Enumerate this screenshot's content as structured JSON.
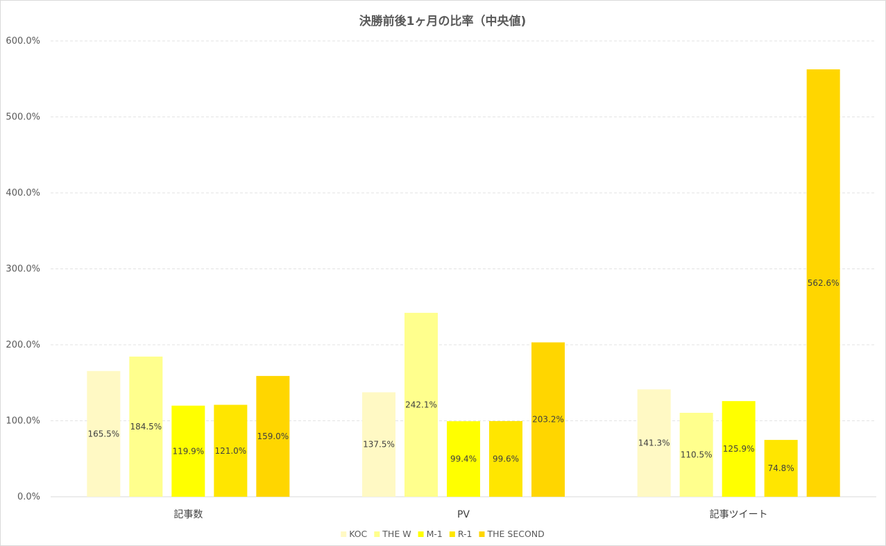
{
  "chart_data": {
    "type": "bar",
    "title": "決勝前後1ヶ月の比率（中央値)",
    "categories": [
      "記事数",
      "PV",
      "記事ツイート"
    ],
    "series": [
      {
        "name": "KOC",
        "color": "#FFF9C4",
        "values": [
          165.5,
          137.5,
          141.3
        ],
        "labels": [
          "165.5%",
          "137.5%",
          "141.3%"
        ]
      },
      {
        "name": "THE W",
        "color": "#FFFF8D",
        "values": [
          184.5,
          242.1,
          110.5
        ],
        "labels": [
          "184.5%",
          "242.1%",
          "110.5%"
        ]
      },
      {
        "name": "M-1",
        "color": "#FFFF00",
        "values": [
          119.9,
          99.4,
          125.9
        ],
        "labels": [
          "119.9%",
          "99.4%",
          "125.9%"
        ]
      },
      {
        "name": "R-1",
        "color": "#FFE600",
        "values": [
          121.0,
          99.6,
          74.8
        ],
        "labels": [
          "121.0%",
          "99.6%",
          "74.8%"
        ]
      },
      {
        "name": "THE SECOND",
        "color": "#FFD600",
        "values": [
          159.0,
          203.2,
          562.6
        ],
        "labels": [
          "159.0%",
          "203.2%",
          "562.6%"
        ]
      }
    ],
    "ylim": [
      0,
      600
    ],
    "yticks": [
      0,
      100,
      200,
      300,
      400,
      500,
      600
    ],
    "ytick_labels": [
      "0.0%",
      "100.0%",
      "200.0%",
      "300.0%",
      "400.0%",
      "500.0%",
      "600.0%"
    ],
    "xlabel": "",
    "ylabel": "",
    "grid": true,
    "legend_position": "bottom"
  }
}
